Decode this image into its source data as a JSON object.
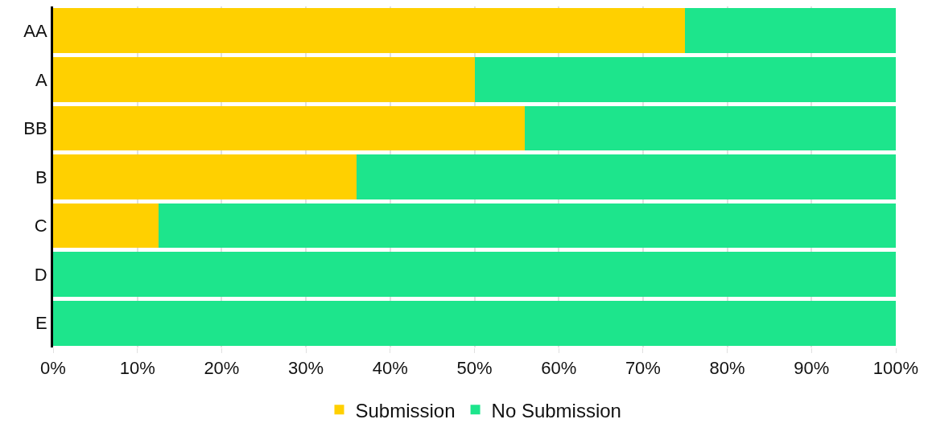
{
  "chart_data": {
    "type": "bar",
    "orientation": "horizontal",
    "stacked": true,
    "categories": [
      "AA",
      "A",
      "BB",
      "B",
      "C",
      "D",
      "E"
    ],
    "series": [
      {
        "name": "Submission",
        "color": "#ffd000",
        "values": [
          75,
          50,
          56,
          36,
          12.5,
          0,
          0
        ]
      },
      {
        "name": "No Submission",
        "color": "#1de58c",
        "values": [
          25,
          50,
          44,
          64,
          87.5,
          100,
          100
        ]
      }
    ],
    "xlim": [
      0,
      100
    ],
    "xticks": [
      {
        "value": 0,
        "label": "0%"
      },
      {
        "value": 10,
        "label": "10%"
      },
      {
        "value": 20,
        "label": "20%"
      },
      {
        "value": 30,
        "label": "30%"
      },
      {
        "value": 40,
        "label": "40%"
      },
      {
        "value": 50,
        "label": "50%"
      },
      {
        "value": 60,
        "label": "60%"
      },
      {
        "value": 70,
        "label": "70%"
      },
      {
        "value": 80,
        "label": "80%"
      },
      {
        "value": 90,
        "label": "90%"
      },
      {
        "value": 100,
        "label": "100%"
      }
    ],
    "grid": "x",
    "legend": "bottom"
  }
}
